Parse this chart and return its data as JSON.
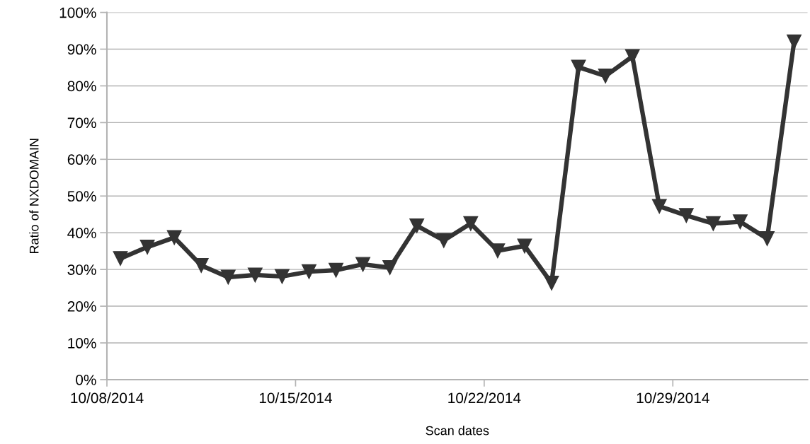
{
  "chart_data": {
    "type": "line",
    "xlabel": "Scan dates",
    "ylabel": "Ratio of NXDOMAIN",
    "x": [
      "2014-10-08T12:00",
      "2014-10-09T12:00",
      "2014-10-10T12:00",
      "2014-10-11T12:00",
      "2014-10-12T12:00",
      "2014-10-13T12:00",
      "2014-10-14T12:00",
      "2014-10-15T12:00",
      "2014-10-16T12:00",
      "2014-10-17T12:00",
      "2014-10-18T12:00",
      "2014-10-19T12:00",
      "2014-10-20T12:00",
      "2014-10-21T12:00",
      "2014-10-22T12:00",
      "2014-10-23T12:00",
      "2014-10-24T12:00",
      "2014-10-25T12:00",
      "2014-10-26T12:00",
      "2014-10-27T12:00",
      "2014-10-28T12:00",
      "2014-10-29T12:00",
      "2014-10-30T12:00",
      "2014-10-31T12:00",
      "2014-11-01T12:00",
      "2014-11-02T12:00"
    ],
    "series": [
      {
        "color": "#333333",
        "values": [
          33.0,
          36.1,
          38.7,
          31.1,
          27.9,
          28.5,
          28.1,
          29.4,
          29.8,
          31.4,
          30.5,
          41.9,
          37.9,
          42.5,
          35.1,
          36.4,
          26.3,
          85.1,
          82.7,
          88.0,
          47.2,
          44.7,
          42.5,
          43.0,
          38.4,
          92.0
        ]
      }
    ],
    "xlim": [
      "2014-10-08",
      "2014-11-03"
    ],
    "xticks": [
      {
        "value": "2014-10-08",
        "label": "10/08/2014"
      },
      {
        "value": "2014-10-15",
        "label": "10/15/2014"
      },
      {
        "value": "2014-10-22",
        "label": "10/22/2014"
      },
      {
        "value": "2014-10-29",
        "label": "10/29/2014"
      }
    ],
    "ylim": [
      0,
      100
    ],
    "yticks": [
      {
        "value": 0,
        "label": "0%"
      },
      {
        "value": 10,
        "label": "10%"
      },
      {
        "value": 20,
        "label": "20%"
      },
      {
        "value": 30,
        "label": "30%"
      },
      {
        "value": 40,
        "label": "40%"
      },
      {
        "value": 50,
        "label": "50%"
      },
      {
        "value": 60,
        "label": "60%"
      },
      {
        "value": 70,
        "label": "70%"
      },
      {
        "value": 80,
        "label": "80%"
      },
      {
        "value": 90,
        "label": "90%"
      },
      {
        "value": 100,
        "label": "100%"
      }
    ],
    "grid": "y",
    "legend": false,
    "marker": "triangle",
    "line_style": "solid"
  }
}
